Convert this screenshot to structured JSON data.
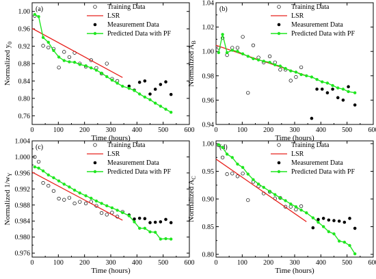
{
  "colors": {
    "lsr": "#e8201c",
    "pf": "#1fe61f",
    "measurement": "#000000",
    "training": "#000000"
  },
  "chart_data": [
    {
      "type": "scatter",
      "panel_label": "(a)",
      "xlabel": "Time (hours)",
      "ylabel_main": "Normalized y",
      "ylabel_sub": "0",
      "xlim": [
        0,
        600
      ],
      "ylim": [
        0.74,
        1.02
      ],
      "xticks": [
        0,
        100,
        200,
        300,
        400,
        500,
        600
      ],
      "yticks": [
        0.76,
        0.8,
        0.84,
        0.88,
        0.92,
        0.96,
        1.0
      ],
      "ytick_labels": [
        "0.76",
        "0.80",
        "0.84",
        "0.88",
        "0.92",
        "0.96",
        "1.00"
      ],
      "legend": {
        "position": "top-right",
        "entries": [
          "Training Data",
          "LSR",
          "Measurement Data",
          "Predicted Data with PF"
        ]
      },
      "series": [
        {
          "name": "Training Data",
          "kind": "open-circle",
          "x": [
            10,
            42,
            62,
            82,
            102,
            122,
            142,
            162,
            182,
            205,
            225,
            245,
            265,
            285,
            305,
            325
          ],
          "y": [
            0.99,
            0.921,
            0.917,
            0.914,
            0.871,
            0.907,
            0.895,
            0.905,
            0.88,
            0.873,
            0.888,
            0.87,
            0.857,
            0.88,
            0.845,
            0.84
          ]
        },
        {
          "name": "LSR",
          "kind": "line",
          "x": [
            0,
            345
          ],
          "y": [
            0.961,
            0.848
          ]
        },
        {
          "name": "Measurement Data",
          "kind": "filled-circle",
          "x": [
            370,
            390,
            410,
            430,
            450,
            470,
            490,
            510,
            530
          ],
          "y": [
            0.828,
            0.819,
            0.837,
            0.84,
            0.81,
            0.821,
            0.832,
            0.838,
            0.809
          ]
        },
        {
          "name": "Predicted Data with PF",
          "kind": "line-marker",
          "x": [
            10,
            25,
            42,
            62,
            82,
            102,
            122,
            142,
            162,
            182,
            205,
            225,
            245,
            265,
            285,
            305,
            325,
            345,
            370,
            390,
            410,
            430,
            450,
            470,
            490,
            510,
            530
          ],
          "y": [
            0.993,
            0.988,
            0.94,
            0.929,
            0.91,
            0.895,
            0.887,
            0.884,
            0.883,
            0.878,
            0.875,
            0.87,
            0.865,
            0.858,
            0.85,
            0.842,
            0.835,
            0.828,
            0.823,
            0.818,
            0.81,
            0.803,
            0.797,
            0.789,
            0.782,
            0.775,
            0.768
          ]
        }
      ]
    },
    {
      "type": "scatter",
      "panel_label": "(b)",
      "xlabel": "Time (hours)",
      "ylabel_main": "Normalized A",
      "ylabel_sub": "B",
      "xlim": [
        0,
        600
      ],
      "ylim": [
        0.94,
        1.04
      ],
      "xticks": [
        0,
        100,
        200,
        300,
        400,
        500,
        600
      ],
      "yticks": [
        0.94,
        0.96,
        0.98,
        1.0,
        1.02,
        1.04
      ],
      "ytick_labels": [
        "0.94",
        "0.96",
        "0.98",
        "1.00",
        "1.02",
        "1.04"
      ],
      "legend": {
        "position": "top-right",
        "entries": [
          "Training Data",
          "LSR",
          "Measurement Data",
          "Predicted Data with PF"
        ]
      },
      "series": [
        {
          "name": "Training Data",
          "kind": "open-circle",
          "x": [
            10,
            25,
            42,
            62,
            82,
            102,
            122,
            142,
            162,
            182,
            205,
            225,
            245,
            265,
            285,
            305,
            325
          ],
          "y": [
            1.003,
            1.011,
            0.997,
            1.003,
            1.003,
            1.012,
            0.966,
            1.005,
            0.995,
            0.991,
            0.996,
            0.991,
            0.985,
            0.985,
            0.976,
            0.979,
            0.987
          ]
        },
        {
          "name": "LSR",
          "kind": "line",
          "x": [
            0,
            345
          ],
          "y": [
            1.005,
            0.98
          ]
        },
        {
          "name": "Measurement Data",
          "kind": "filled-circle",
          "x": [
            365,
            385,
            405,
            425,
            445,
            465,
            485,
            505,
            530
          ],
          "y": [
            0.945,
            0.969,
            0.969,
            0.966,
            0.969,
            0.962,
            0.96,
            0.971,
            0.956
          ]
        },
        {
          "name": "Predicted Data with PF",
          "kind": "line-marker",
          "x": [
            10,
            25,
            42,
            62,
            82,
            102,
            122,
            142,
            162,
            182,
            205,
            225,
            245,
            265,
            285,
            305,
            325,
            345,
            365,
            385,
            405,
            425,
            445,
            465,
            485,
            505,
            530
          ],
          "y": [
            0.999,
            1.014,
            0.999,
            1.001,
            1.0,
            0.998,
            0.996,
            0.994,
            0.993,
            0.992,
            0.991,
            0.989,
            0.988,
            0.986,
            0.984,
            0.983,
            0.981,
            0.98,
            0.979,
            0.977,
            0.975,
            0.974,
            0.972,
            0.97,
            0.969,
            0.967,
            0.966
          ]
        }
      ]
    },
    {
      "type": "scatter",
      "panel_label": "(c)",
      "xlabel": "Time (hours)",
      "ylabel_main": "Normalized 1/w",
      "ylabel_sub": "Y",
      "xlim": [
        0,
        600
      ],
      "ylim": [
        0.975,
        1.004
      ],
      "xticks": [
        0,
        100,
        200,
        300,
        400,
        500,
        600
      ],
      "yticks": [
        0.976,
        0.98,
        0.984,
        0.988,
        0.992,
        0.996,
        1.0,
        1.004
      ],
      "ytick_labels": [
        "0.976",
        "0.980",
        "0.984",
        "0.988",
        "0.992",
        "0.996",
        "1.000",
        "1.004"
      ],
      "legend": {
        "position": "top-right",
        "entries": [
          "Training Data",
          "LSR",
          "Measurement Data",
          "Predicted Data with PF"
        ]
      },
      "series": [
        {
          "name": "Training Data",
          "kind": "open-circle",
          "x": [
            10,
            25,
            42,
            62,
            82,
            102,
            122,
            142,
            162,
            182,
            205,
            225,
            245,
            265,
            285,
            305,
            325,
            345
          ],
          "y": [
            1.0,
            0.9988,
            0.9935,
            0.9928,
            0.9915,
            0.9896,
            0.9893,
            0.9898,
            0.9884,
            0.9888,
            0.9884,
            0.9888,
            0.9878,
            0.986,
            0.9856,
            0.9861,
            0.9851,
            0.9863
          ]
        },
        {
          "name": "LSR",
          "kind": "line",
          "x": [
            0,
            345
          ],
          "y": [
            0.9962,
            0.9842
          ]
        },
        {
          "name": "Measurement Data",
          "kind": "filled-circle",
          "x": [
            370,
            390,
            410,
            430,
            450,
            470,
            490,
            510,
            530
          ],
          "y": [
            0.9855,
            0.9845,
            0.9847,
            0.9846,
            0.9836,
            0.9837,
            0.9838,
            0.9844,
            0.9836
          ]
        },
        {
          "name": "Predicted Data with PF",
          "kind": "line-marker",
          "x": [
            10,
            25,
            42,
            62,
            82,
            102,
            122,
            142,
            162,
            182,
            205,
            225,
            245,
            265,
            285,
            305,
            325,
            345,
            370,
            390,
            410,
            430,
            450,
            470,
            490,
            510,
            530
          ],
          "y": [
            0.9975,
            0.9972,
            0.9965,
            0.9955,
            0.9948,
            0.994,
            0.9932,
            0.9925,
            0.9917,
            0.991,
            0.9903,
            0.9897,
            0.989,
            0.9884,
            0.9878,
            0.9873,
            0.9867,
            0.9861,
            0.9853,
            0.9838,
            0.9822,
            0.9822,
            0.9813,
            0.9812,
            0.9795,
            0.9796,
            0.9795
          ]
        }
      ]
    },
    {
      "type": "scatter",
      "panel_label": "(d)",
      "xlabel": "Time (hours)",
      "ylabel_main": "Normalized A",
      "ylabel_sub": "C",
      "xlim": [
        0,
        600
      ],
      "ylim": [
        0.795,
        1.005
      ],
      "xticks": [
        0,
        100,
        200,
        300,
        400,
        500,
        600
      ],
      "yticks": [
        0.8,
        0.85,
        0.9,
        0.95,
        1.0
      ],
      "ytick_labels": [
        "0.80",
        "0.85",
        "0.90",
        "0.95",
        "1.00"
      ],
      "legend": {
        "position": "top-right",
        "entries": [
          "Training Data",
          "LSR",
          "Measurement Data",
          "Predicted Data with PF"
        ]
      },
      "series": [
        {
          "name": "Training Data",
          "kind": "open-circle",
          "x": [
            10,
            25,
            42,
            62,
            82,
            102,
            122,
            142,
            162,
            182,
            205,
            225,
            245,
            265,
            285,
            305,
            325
          ],
          "y": [
            0.997,
            0.975,
            0.945,
            0.946,
            0.941,
            0.946,
            0.898,
            0.931,
            0.923,
            0.91,
            0.913,
            0.901,
            0.902,
            0.886,
            0.886,
            0.881,
            0.887
          ]
        },
        {
          "name": "LSR",
          "kind": "line",
          "x": [
            0,
            345
          ],
          "y": [
            0.972,
            0.859
          ]
        },
        {
          "name": "Measurement Data",
          "kind": "filled-circle",
          "x": [
            370,
            390,
            410,
            430,
            450,
            470,
            490,
            510,
            530
          ],
          "y": [
            0.848,
            0.863,
            0.865,
            0.862,
            0.861,
            0.86,
            0.858,
            0.865,
            0.847
          ]
        },
        {
          "name": "Predicted Data with PF",
          "kind": "line-marker",
          "x": [
            10,
            25,
            42,
            62,
            82,
            102,
            122,
            142,
            162,
            182,
            205,
            225,
            245,
            265,
            285,
            305,
            325,
            345,
            370,
            390,
            410,
            430,
            450,
            470,
            490,
            510,
            530
          ],
          "y": [
            0.998,
            0.993,
            0.981,
            0.975,
            0.963,
            0.957,
            0.945,
            0.935,
            0.927,
            0.921,
            0.914,
            0.908,
            0.902,
            0.897,
            0.891,
            0.886,
            0.88,
            0.875,
            0.866,
            0.858,
            0.85,
            0.841,
            0.837,
            0.824,
            0.822,
            0.816,
            0.801
          ]
        }
      ]
    }
  ]
}
